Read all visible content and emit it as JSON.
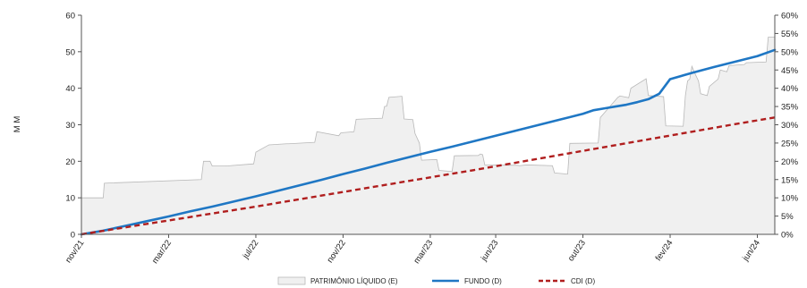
{
  "chart_data": {
    "type": "area+line",
    "title": "",
    "ylabel_left": "M M",
    "ylim_left": [
      0,
      60
    ],
    "yticks_left": [
      "0",
      "10",
      "20",
      "30",
      "40",
      "50",
      "60"
    ],
    "ylim_right": [
      0,
      60
    ],
    "yticks_right": [
      "0%",
      "5%",
      "10%",
      "15%",
      "20%",
      "25%",
      "30%",
      "35%",
      "40%",
      "45%",
      "50%",
      "55%",
      "60%"
    ],
    "x_tick_labels": [
      "nov/21",
      "mar/22",
      "jul/22",
      "nov/22",
      "mar/23",
      "jun/23",
      "out/23",
      "fev/24",
      "jun/24"
    ],
    "x_tick_months": [
      0,
      4,
      8,
      12,
      16,
      19,
      23,
      27,
      31
    ],
    "x_range_months": [
      0,
      31.8
    ],
    "grid": false,
    "legend_position": "bottom",
    "series": [
      {
        "name": "PATRIMÔNIO LÍQUIDO (E)",
        "kind": "area",
        "axis": "left",
        "color": "#f0f0f0",
        "stroke": "#b8b8b8",
        "x": [
          0,
          1,
          1.05,
          5.5,
          5.6,
          5.9,
          6.0,
          6.6,
          7.9,
          8.0,
          8.6,
          9.4,
          9.5,
          10.7,
          10.8,
          11.8,
          11.9,
          12.5,
          12.6,
          13.8,
          13.9,
          14.0,
          14.1,
          14.7,
          14.8,
          15.2,
          15.3,
          15.5,
          15.6,
          16.3,
          16.4,
          17.0,
          17.1,
          18.2,
          18.3,
          18.4,
          18.5,
          20.0,
          20.1,
          20.4,
          20.5,
          21.6,
          21.7,
          22.3,
          22.4,
          23.7,
          23.8,
          24.6,
          24.7,
          25.1,
          25.2,
          25.9,
          26.0,
          26.7,
          26.8,
          27.6,
          27.7,
          27.8,
          27.9,
          28.0,
          28.1,
          28.3,
          28.4,
          28.7,
          28.8,
          29.2,
          29.3,
          29.6,
          29.7,
          30.4,
          30.5,
          31.4,
          31.5,
          31.8
        ],
        "values": [
          10,
          10,
          14,
          15,
          20,
          20,
          18.7,
          18.7,
          19.3,
          22.5,
          24.5,
          24.8,
          24.8,
          25.2,
          28.1,
          27,
          27.8,
          28.1,
          31.5,
          31.8,
          35,
          35.1,
          37.5,
          37.8,
          31.6,
          31.4,
          27.6,
          25,
          20.3,
          20.5,
          17.5,
          17.2,
          21.5,
          21.6,
          22,
          21.8,
          19,
          18.9,
          18.8,
          19,
          19,
          18.8,
          16.8,
          16.5,
          24.9,
          25,
          32,
          37.5,
          37.9,
          37.4,
          40,
          42.6,
          38,
          37.7,
          29.7,
          29.6,
          38,
          42,
          42.5,
          46,
          44.5,
          42,
          38.5,
          38,
          40.5,
          42.5,
          45,
          44.5,
          46.2,
          46.5,
          47,
          47.2,
          54,
          54
        ],
        "min_values": [
          10,
          10,
          14,
          15,
          20,
          20,
          18.7,
          18.7,
          19.3,
          22.5,
          24.5,
          24.8,
          24.8,
          25.2,
          28.1,
          27,
          27.8,
          28.1,
          31.5,
          31.8,
          35,
          35.1,
          37.5,
          37.8,
          31.6,
          31.4,
          27.6,
          25,
          20.3,
          20.5,
          17.5,
          17.2,
          21.5,
          21.6,
          22,
          21.8,
          19,
          18.9,
          18.8,
          19,
          19,
          18.8,
          16.8,
          16.5,
          24.9,
          25,
          32,
          37.5,
          37.9,
          37.4,
          40,
          42.6,
          38,
          37.7,
          29.7,
          29.6,
          38,
          42,
          42.5,
          46,
          44.5,
          42,
          38.5,
          38,
          40.5,
          42.5,
          45,
          44.5,
          46.2,
          46.5,
          47,
          47.2,
          54,
          54
        ]
      },
      {
        "name": "FUNDO (D)",
        "kind": "line",
        "axis": "right",
        "color": "#1f77c4",
        "dash": "none",
        "x": [
          0,
          1,
          2,
          3,
          4,
          5,
          6,
          7,
          8,
          9,
          10,
          11,
          12,
          13,
          14,
          15,
          16,
          17,
          18,
          19,
          20,
          21,
          22,
          23,
          23.5,
          24,
          24.5,
          25,
          25.5,
          26.0,
          26.5,
          27,
          28,
          29,
          30,
          31,
          31.8
        ],
        "values": [
          0,
          1,
          2.3,
          3.6,
          4.9,
          6.3,
          7.6,
          9.0,
          10.4,
          11.9,
          13.4,
          14.9,
          16.5,
          18.0,
          19.6,
          21.1,
          22.6,
          24.0,
          25.5,
          27.0,
          28.5,
          30.0,
          31.5,
          33.0,
          34.0,
          34.5,
          35.0,
          35.5,
          36.2,
          37.0,
          38.5,
          42.5,
          44.2,
          45.8,
          47.3,
          48.8,
          50.5
        ]
      },
      {
        "name": "CDI (D)",
        "kind": "line",
        "axis": "right",
        "color": "#b01e1e",
        "dash": "dashed",
        "x": [
          0,
          2,
          4,
          6,
          8,
          10,
          12,
          14,
          16,
          18,
          20,
          22,
          24,
          26,
          28,
          30,
          31.8
        ],
        "values": [
          0,
          1.9,
          3.8,
          5.7,
          7.6,
          9.6,
          11.6,
          13.6,
          15.6,
          17.6,
          19.7,
          21.8,
          23.9,
          26.0,
          28.1,
          30.2,
          32.0
        ]
      }
    ]
  }
}
